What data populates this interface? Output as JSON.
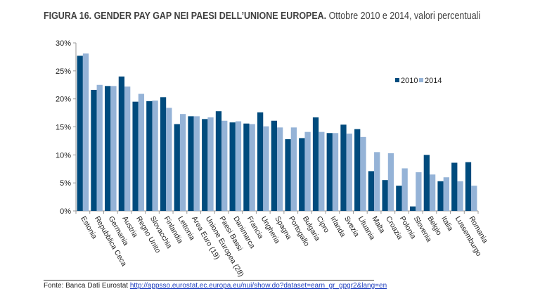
{
  "title": {
    "bold": "FIGURA 16. GENDER PAY GAP NEI PAESI DELL’UNIONE EUROPEA.",
    "normal": "Ottobre 2010 e 2014, valori percentuali"
  },
  "footer": {
    "label": "Fonte: Banca Dati Eurostat",
    "link": "http://appsso.eurostat.ec.europa.eu/nui/show.do?dataset=earn_gr_gpgr2&lang=en"
  },
  "chart_data": {
    "type": "bar",
    "ylim": [
      0,
      30
    ],
    "yticks": [
      "0%",
      "5%",
      "10%",
      "15%",
      "20%",
      "25%",
      "30%"
    ],
    "ytick_values": [
      0,
      5,
      10,
      15,
      20,
      25,
      30
    ],
    "legend_placement": "top-right",
    "grid": false,
    "categories": [
      "Estonia",
      "Repubblica Ceca",
      "Germania",
      "Austria",
      "Regno Unito",
      "Slovacchia",
      "Finlandia",
      "Lettonia",
      "Area Euro (19)",
      "Unione Europea (28)",
      "Paesi Bassi",
      "Danimarca",
      "Francia",
      "Ungheria",
      "Spagna",
      "Portogallo",
      "Bulgaria",
      "Cipro",
      "Irlanda",
      "Svezia",
      "Lituania",
      "Malta",
      "Croazia",
      "Polonia",
      "Slovenia",
      "Belgio",
      "Italia",
      "Lussemburgo",
      "Romania"
    ],
    "series": [
      {
        "name": "2010",
        "color": "#004b7d",
        "values": [
          27.7,
          21.6,
          22.3,
          24.0,
          19.5,
          19.6,
          20.3,
          15.5,
          16.9,
          16.4,
          17.8,
          15.8,
          15.6,
          17.6,
          16.1,
          12.8,
          13.0,
          16.7,
          13.9,
          15.4,
          14.6,
          7.1,
          5.5,
          4.5,
          0.8,
          10.0,
          5.3,
          8.6,
          8.7
        ]
      },
      {
        "name": "2014",
        "color": "#95b3d7",
        "values": [
          28.1,
          22.5,
          22.3,
          22.2,
          20.9,
          19.7,
          18.4,
          17.3,
          16.9,
          16.7,
          16.1,
          16.0,
          15.5,
          15.1,
          14.9,
          14.9,
          14.1,
          14.1,
          13.9,
          13.8,
          13.2,
          10.5,
          10.3,
          7.6,
          6.9,
          6.5,
          6.0,
          5.3,
          4.5
        ]
      }
    ]
  }
}
